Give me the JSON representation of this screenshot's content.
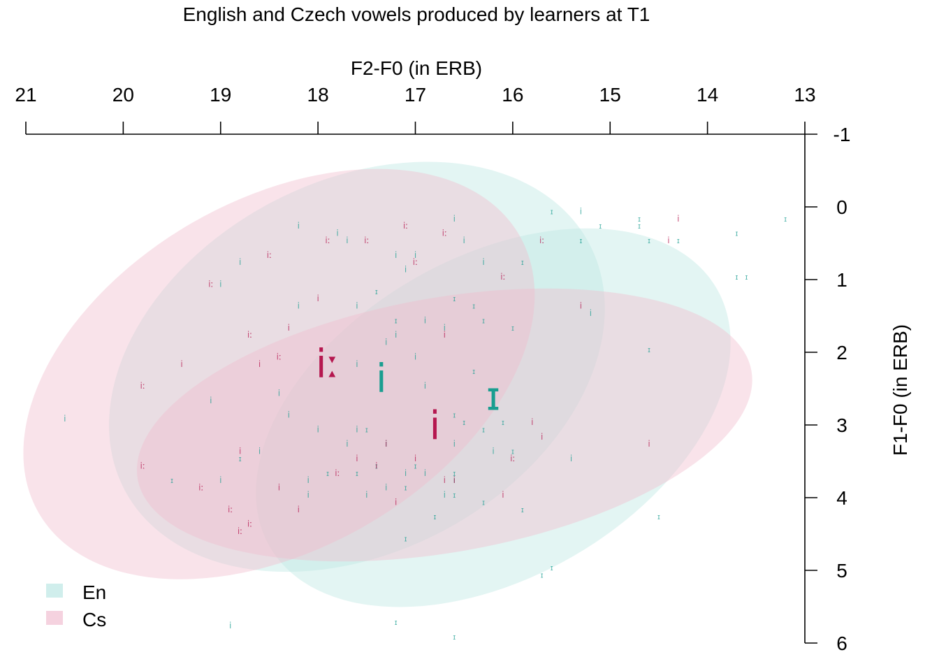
{
  "chart_data": {
    "type": "scatter",
    "title": "English and Czech vowels produced by learners at T1",
    "xlabel": "F2-F0 (in ERB)",
    "ylabel": "F1-F0 (in ERB)",
    "x_axis": {
      "position": "top",
      "reversed": true,
      "range": [
        21,
        13
      ],
      "ticks": [
        "21",
        "20",
        "19",
        "18",
        "17",
        "16",
        "15",
        "14",
        "13"
      ]
    },
    "y_axis": {
      "position": "right",
      "reversed": true,
      "range": [
        -1,
        6
      ],
      "ticks": [
        "-1",
        "0",
        "1",
        "2",
        "3",
        "4",
        "5",
        "6"
      ]
    },
    "grid": false,
    "legend": {
      "position": "bottom-left",
      "entries": [
        {
          "label": "En",
          "color": "#d0eeec"
        },
        {
          "label": "Cs",
          "color": "#f5d2df"
        }
      ]
    },
    "colors": {
      "En": "#1a9e90",
      "Cs": "#b5174f",
      "En_fill": "#bde8e3",
      "Cs_fill": "#f0bccd",
      "overlap_fill": "#dcdcdc"
    },
    "ellipses": [
      {
        "group": "En",
        "vowel": "i",
        "cx": 17.6,
        "cy": 2.2,
        "rx": 2.7,
        "ry": 2.55,
        "angle": -28
      },
      {
        "group": "En",
        "vowel": "ɪ",
        "cx": 16.2,
        "cy": 2.9,
        "rx": 2.65,
        "ry": 2.2,
        "angle": -30
      },
      {
        "group": "Cs",
        "vowel": "iː",
        "cx": 18.4,
        "cy": 2.3,
        "rx": 2.85,
        "ry": 2.4,
        "angle": -30
      },
      {
        "group": "Cs",
        "vowel": "i",
        "cx": 16.7,
        "cy": 3.0,
        "rx": 3.2,
        "ry": 1.75,
        "angle": -10
      }
    ],
    "centroids": [
      {
        "label": "iː",
        "group": "Cs",
        "x": 17.9,
        "y": 2.15
      },
      {
        "label": "i",
        "group": "En",
        "x": 17.35,
        "y": 2.35
      },
      {
        "label": "ɪ",
        "group": "En",
        "x": 16.2,
        "y": 2.6
      },
      {
        "label": "i",
        "group": "Cs",
        "x": 16.8,
        "y": 3.0
      }
    ],
    "tokens": [
      {
        "label": "i",
        "group": "En",
        "x": 17.1,
        "y": 0.9
      },
      {
        "label": "i",
        "group": "En",
        "x": 17.7,
        "y": 0.5
      },
      {
        "label": "i",
        "group": "En",
        "x": 17.2,
        "y": 0.7
      },
      {
        "label": "i",
        "group": "En",
        "x": 16.6,
        "y": 0.2
      },
      {
        "label": "i",
        "group": "En",
        "x": 17.0,
        "y": 0.7
      },
      {
        "label": "i",
        "group": "En",
        "x": 18.2,
        "y": 0.3
      },
      {
        "label": "i",
        "group": "En",
        "x": 17.8,
        "y": 0.4
      },
      {
        "label": "i",
        "group": "En",
        "x": 18.8,
        "y": 0.8
      },
      {
        "label": "i",
        "group": "En",
        "x": 16.3,
        "y": 0.8
      },
      {
        "label": "i",
        "group": "En",
        "x": 16.5,
        "y": 0.5
      },
      {
        "label": "i",
        "group": "En",
        "x": 18.2,
        "y": 1.4
      },
      {
        "label": "i",
        "group": "En",
        "x": 19.0,
        "y": 1.1
      },
      {
        "label": "i",
        "group": "En",
        "x": 17.6,
        "y": 1.4
      },
      {
        "label": "i",
        "group": "En",
        "x": 17.2,
        "y": 1.8
      },
      {
        "label": "i",
        "group": "En",
        "x": 16.9,
        "y": 1.6
      },
      {
        "label": "i",
        "group": "En",
        "x": 17.0,
        "y": 2.1
      },
      {
        "label": "i",
        "group": "En",
        "x": 17.3,
        "y": 1.9
      },
      {
        "label": "i",
        "group": "En",
        "x": 16.7,
        "y": 1.7
      },
      {
        "label": "i",
        "group": "En",
        "x": 16.9,
        "y": 2.5
      },
      {
        "label": "i",
        "group": "En",
        "x": 17.6,
        "y": 2.2
      },
      {
        "label": "i",
        "group": "En",
        "x": 18.4,
        "y": 2.6
      },
      {
        "label": "i",
        "group": "En",
        "x": 18.3,
        "y": 2.9
      },
      {
        "label": "i",
        "group": "En",
        "x": 18.0,
        "y": 3.1
      },
      {
        "label": "i",
        "group": "En",
        "x": 17.6,
        "y": 3.1
      },
      {
        "label": "i",
        "group": "En",
        "x": 17.7,
        "y": 3.3
      },
      {
        "label": "i",
        "group": "En",
        "x": 17.3,
        "y": 3.3
      },
      {
        "label": "i",
        "group": "En",
        "x": 16.6,
        "y": 3.3
      },
      {
        "label": "i",
        "group": "En",
        "x": 16.2,
        "y": 3.4
      },
      {
        "label": "i",
        "group": "En",
        "x": 18.1,
        "y": 3.8
      },
      {
        "label": "i",
        "group": "En",
        "x": 18.1,
        "y": 4.0
      },
      {
        "label": "i",
        "group": "En",
        "x": 17.5,
        "y": 4.0
      },
      {
        "label": "i",
        "group": "En",
        "x": 17.1,
        "y": 3.7
      },
      {
        "label": "i",
        "group": "En",
        "x": 16.9,
        "y": 3.7
      },
      {
        "label": "i",
        "group": "En",
        "x": 16.7,
        "y": 4.0
      },
      {
        "label": "i",
        "group": "En",
        "x": 17.3,
        "y": 3.9
      },
      {
        "label": "i",
        "group": "En",
        "x": 16.6,
        "y": 3.8
      },
      {
        "label": "i",
        "group": "En",
        "x": 15.2,
        "y": 1.5
      },
      {
        "label": "i",
        "group": "En",
        "x": 19.0,
        "y": 3.8
      },
      {
        "label": "i",
        "group": "En",
        "x": 19.1,
        "y": 2.7
      },
      {
        "label": "i",
        "group": "En",
        "x": 18.6,
        "y": 3.4
      },
      {
        "label": "i",
        "group": "En",
        "x": 20.6,
        "y": 2.95
      },
      {
        "label": "i",
        "group": "En",
        "x": 15.4,
        "y": 3.5
      },
      {
        "label": "i",
        "group": "En",
        "x": 15.3,
        "y": 0.1
      },
      {
        "label": "i",
        "group": "En",
        "x": 18.9,
        "y": 5.8
      },
      {
        "label": "ɪ",
        "group": "En",
        "x": 15.1,
        "y": 0.3
      },
      {
        "label": "ɪ",
        "group": "En",
        "x": 14.7,
        "y": 0.2
      },
      {
        "label": "ɪ",
        "group": "En",
        "x": 14.6,
        "y": 0.5
      },
      {
        "label": "ɪ",
        "group": "En",
        "x": 14.3,
        "y": 0.5
      },
      {
        "label": "ɪ",
        "group": "En",
        "x": 14.7,
        "y": 0.3
      },
      {
        "label": "ɪ",
        "group": "En",
        "x": 15.3,
        "y": 0.5
      },
      {
        "label": "ɪ",
        "group": "En",
        "x": 15.6,
        "y": 0.1
      },
      {
        "label": "ɪ",
        "group": "En",
        "x": 15.9,
        "y": 0.8
      },
      {
        "label": "ɪ",
        "group": "En",
        "x": 13.7,
        "y": 0.4
      },
      {
        "label": "ɪ",
        "group": "En",
        "x": 13.2,
        "y": 0.2
      },
      {
        "label": "ɪ",
        "group": "En",
        "x": 13.6,
        "y": 1.0
      },
      {
        "label": "ɪ",
        "group": "En",
        "x": 13.7,
        "y": 1.0
      },
      {
        "label": "ɪ",
        "group": "En",
        "x": 14.6,
        "y": 2.0
      },
      {
        "label": "ɪ",
        "group": "En",
        "x": 16.6,
        "y": 1.3
      },
      {
        "label": "ɪ",
        "group": "En",
        "x": 16.4,
        "y": 1.4
      },
      {
        "label": "ɪ",
        "group": "En",
        "x": 16.3,
        "y": 1.6
      },
      {
        "label": "ɪ",
        "group": "En",
        "x": 16.0,
        "y": 1.7
      },
      {
        "label": "ɪ",
        "group": "En",
        "x": 17.4,
        "y": 1.2
      },
      {
        "label": "ɪ",
        "group": "En",
        "x": 17.2,
        "y": 1.6
      },
      {
        "label": "ɪ",
        "group": "En",
        "x": 16.4,
        "y": 2.3
      },
      {
        "label": "ɪ",
        "group": "En",
        "x": 16.6,
        "y": 2.9
      },
      {
        "label": "ɪ",
        "group": "En",
        "x": 16.5,
        "y": 3.0
      },
      {
        "label": "ɪ",
        "group": "En",
        "x": 16.3,
        "y": 3.1
      },
      {
        "label": "ɪ",
        "group": "En",
        "x": 16.1,
        "y": 3.0
      },
      {
        "label": "ɪ",
        "group": "En",
        "x": 16.0,
        "y": 3.4
      },
      {
        "label": "ɪ",
        "group": "En",
        "x": 17.5,
        "y": 3.1
      },
      {
        "label": "ɪ",
        "group": "En",
        "x": 17.0,
        "y": 3.6
      },
      {
        "label": "ɪ",
        "group": "En",
        "x": 16.6,
        "y": 3.7
      },
      {
        "label": "ɪ",
        "group": "En",
        "x": 17.4,
        "y": 3.6
      },
      {
        "label": "ɪ",
        "group": "En",
        "x": 17.6,
        "y": 3.7
      },
      {
        "label": "ɪ",
        "group": "En",
        "x": 17.1,
        "y": 3.9
      },
      {
        "label": "ɪ",
        "group": "En",
        "x": 16.8,
        "y": 4.3
      },
      {
        "label": "ɪ",
        "group": "En",
        "x": 16.6,
        "y": 4.0
      },
      {
        "label": "ɪ",
        "group": "En",
        "x": 16.3,
        "y": 4.1
      },
      {
        "label": "ɪ",
        "group": "En",
        "x": 15.9,
        "y": 4.2
      },
      {
        "label": "ɪ",
        "group": "En",
        "x": 17.1,
        "y": 4.6
      },
      {
        "label": "ɪ",
        "group": "En",
        "x": 17.9,
        "y": 3.7
      },
      {
        "label": "ɪ",
        "group": "En",
        "x": 18.8,
        "y": 3.5
      },
      {
        "label": "ɪ",
        "group": "En",
        "x": 19.5,
        "y": 3.8
      },
      {
        "label": "ɪ",
        "group": "En",
        "x": 15.6,
        "y": 5.0
      },
      {
        "label": "ɪ",
        "group": "En",
        "x": 15.7,
        "y": 5.1
      },
      {
        "label": "ɪ",
        "group": "En",
        "x": 14.5,
        "y": 4.3
      },
      {
        "label": "ɪ",
        "group": "En",
        "x": 17.2,
        "y": 5.75
      },
      {
        "label": "ɪ",
        "group": "En",
        "x": 16.6,
        "y": 5.95
      },
      {
        "label": "i",
        "group": "Cs",
        "x": 17.3,
        "y": 3.3
      },
      {
        "label": "i",
        "group": "Cs",
        "x": 17.4,
        "y": 3.6
      },
      {
        "label": "i",
        "group": "Cs",
        "x": 17.2,
        "y": 4.1
      },
      {
        "label": "i",
        "group": "Cs",
        "x": 17.0,
        "y": 3.5
      },
      {
        "label": "i",
        "group": "Cs",
        "x": 16.7,
        "y": 3.8
      },
      {
        "label": "i",
        "group": "Cs",
        "x": 16.6,
        "y": 3.8
      },
      {
        "label": "i",
        "group": "Cs",
        "x": 15.7,
        "y": 3.2
      },
      {
        "label": "i",
        "group": "Cs",
        "x": 15.8,
        "y": 3.0
      },
      {
        "label": "i",
        "group": "Cs",
        "x": 15.3,
        "y": 1.4
      },
      {
        "label": "i",
        "group": "Cs",
        "x": 16.7,
        "y": 1.8
      },
      {
        "label": "i",
        "group": "Cs",
        "x": 18.0,
        "y": 1.3
      },
      {
        "label": "i",
        "group": "Cs",
        "x": 18.3,
        "y": 1.7
      },
      {
        "label": "i",
        "group": "Cs",
        "x": 18.6,
        "y": 2.2
      },
      {
        "label": "i",
        "group": "Cs",
        "x": 18.8,
        "y": 3.4
      },
      {
        "label": "i",
        "group": "Cs",
        "x": 18.4,
        "y": 3.9
      },
      {
        "label": "i",
        "group": "Cs",
        "x": 18.2,
        "y": 4.2
      },
      {
        "label": "i",
        "group": "Cs",
        "x": 19.4,
        "y": 2.2
      },
      {
        "label": "i",
        "group": "Cs",
        "x": 14.4,
        "y": 0.5
      },
      {
        "label": "i",
        "group": "Cs",
        "x": 14.3,
        "y": 0.2
      },
      {
        "label": "i",
        "group": "Cs",
        "x": 14.6,
        "y": 3.3
      },
      {
        "label": "i",
        "group": "Cs",
        "x": 16.1,
        "y": 4.0
      },
      {
        "label": "i",
        "group": "Cs",
        "x": 17.6,
        "y": 3.5
      },
      {
        "label": "iː",
        "group": "Cs",
        "x": 18.5,
        "y": 0.7
      },
      {
        "label": "iː",
        "group": "Cs",
        "x": 17.9,
        "y": 0.5
      },
      {
        "label": "iː",
        "group": "Cs",
        "x": 17.5,
        "y": 0.5
      },
      {
        "label": "iː",
        "group": "Cs",
        "x": 17.1,
        "y": 0.3
      },
      {
        "label": "iː",
        "group": "Cs",
        "x": 17.0,
        "y": 0.8
      },
      {
        "label": "iː",
        "group": "Cs",
        "x": 16.7,
        "y": 0.4
      },
      {
        "label": "iː",
        "group": "Cs",
        "x": 16.1,
        "y": 1.0
      },
      {
        "label": "iː",
        "group": "Cs",
        "x": 15.7,
        "y": 0.5
      },
      {
        "label": "iː",
        "group": "Cs",
        "x": 19.1,
        "y": 1.1
      },
      {
        "label": "iː",
        "group": "Cs",
        "x": 18.7,
        "y": 1.8
      },
      {
        "label": "iː",
        "group": "Cs",
        "x": 18.4,
        "y": 2.1
      },
      {
        "label": "iː",
        "group": "Cs",
        "x": 19.8,
        "y": 2.5
      },
      {
        "label": "iː",
        "group": "Cs",
        "x": 19.8,
        "y": 3.6
      },
      {
        "label": "iː",
        "group": "Cs",
        "x": 19.2,
        "y": 3.9
      },
      {
        "label": "iː",
        "group": "Cs",
        "x": 18.9,
        "y": 4.2
      },
      {
        "label": "iː",
        "group": "Cs",
        "x": 18.8,
        "y": 4.5
      },
      {
        "label": "iː",
        "group": "Cs",
        "x": 18.7,
        "y": 4.4
      },
      {
        "label": "iː",
        "group": "Cs",
        "x": 17.8,
        "y": 3.7
      },
      {
        "label": "iː",
        "group": "Cs",
        "x": 16.0,
        "y": 3.5
      }
    ]
  }
}
